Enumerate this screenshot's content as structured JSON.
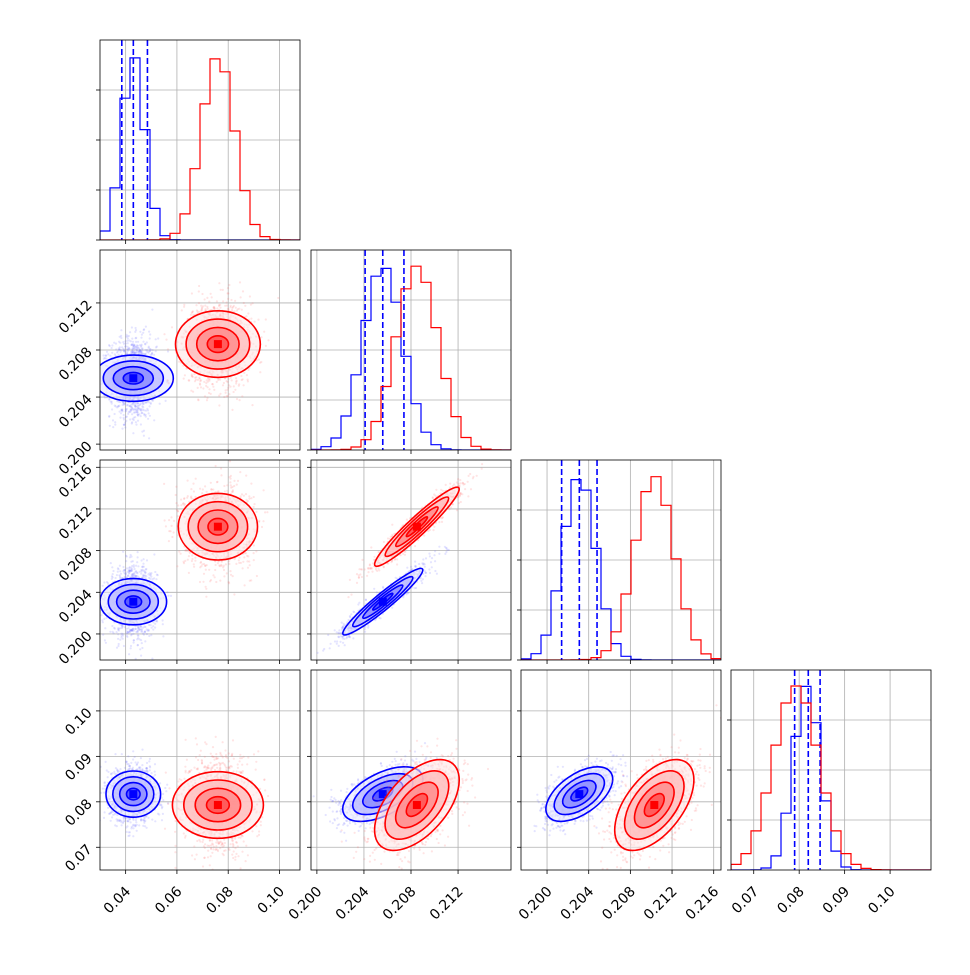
{
  "chart_data": {
    "type": "corner",
    "parameters": [
      {
        "range": [
          0.03,
          0.108
        ],
        "ticks": [
          0.04,
          0.06,
          0.08,
          0.1
        ],
        "tick_labels": [
          "0.04",
          "0.06",
          "0.08",
          "0.10"
        ]
      },
      {
        "range": [
          0.1995,
          0.2165
        ],
        "ticks": [
          0.2,
          0.204,
          0.208,
          0.212
        ],
        "tick_labels": [
          "0.200",
          "0.204",
          "0.208",
          "0.212"
        ]
      },
      {
        "range": [
          0.1975,
          0.2167
        ],
        "ticks": [
          0.2,
          0.204,
          0.208,
          0.212,
          0.216
        ],
        "tick_labels": [
          "0.200",
          "0.204",
          "0.208",
          "0.212",
          "0.216"
        ]
      },
      {
        "range": [
          0.065,
          0.109
        ],
        "ticks": [
          0.07,
          0.08,
          0.09,
          0.1
        ],
        "tick_labels": [
          "0.07",
          "0.08",
          "0.09",
          "0.10"
        ]
      }
    ],
    "series": [
      {
        "color": "#0000ff",
        "means": [
          0.043,
          0.2056,
          0.2031,
          0.0817
        ],
        "sigmas": [
          0.0045,
          0.0017,
          0.0016,
          0.003
        ],
        "correlations": {
          "0-1": 0.0,
          "0-2": 0.0,
          "0-3": 0.0,
          "1-2": 0.95,
          "1-3": 0.55,
          "2-3": 0.55
        },
        "quantiles": [
          [
            0.0385,
            0.043,
            0.0485
          ],
          [
            0.2041,
            0.2056,
            0.2074
          ],
          [
            0.2014,
            0.2031,
            0.2048
          ],
          [
            0.079,
            0.082,
            0.0846
          ]
        ]
      },
      {
        "color": "#ff0000",
        "means": [
          0.076,
          0.2085,
          0.2103,
          0.0793
        ],
        "sigmas": [
          0.0065,
          0.0018,
          0.0019,
          0.005
        ],
        "correlations": {
          "0-1": 0.0,
          "0-2": 0.0,
          "0-3": 0.0,
          "1-2": 0.95,
          "1-3": 0.55,
          "2-3": 0.55
        },
        "quantiles": []
      }
    ],
    "grid": true,
    "legend": "none",
    "title": "",
    "axis_labels": []
  }
}
